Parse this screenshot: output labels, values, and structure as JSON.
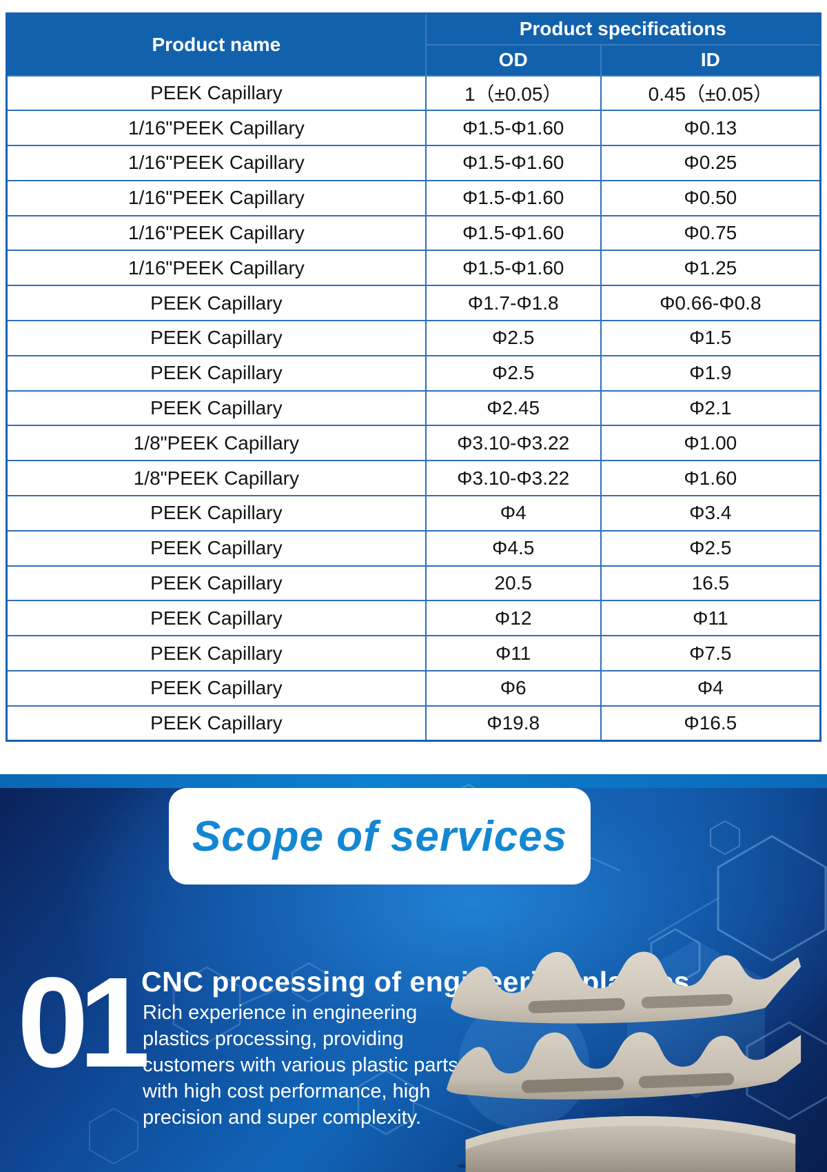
{
  "table": {
    "headers": {
      "product_name": "Product name",
      "specifications": "Product specifications",
      "od": "OD",
      "id": "ID"
    },
    "rows": [
      [
        "PEEK Capillary",
        "1（±0.05）",
        "0.45（±0.05）"
      ],
      [
        "1/16\"PEEK Capillary",
        "Φ1.5-Φ1.60",
        "Φ0.13"
      ],
      [
        "1/16\"PEEK Capillary",
        "Φ1.5-Φ1.60",
        "Φ0.25"
      ],
      [
        "1/16\"PEEK Capillary",
        "Φ1.5-Φ1.60",
        "Φ0.50"
      ],
      [
        "1/16\"PEEK Capillary",
        "Φ1.5-Φ1.60",
        "Φ0.75"
      ],
      [
        "1/16\"PEEK Capillary",
        "Φ1.5-Φ1.60",
        "Φ1.25"
      ],
      [
        "PEEK Capillary",
        "Φ1.7-Φ1.8",
        "Φ0.66-Φ0.8"
      ],
      [
        "PEEK Capillary",
        "Φ2.5",
        "Φ1.5"
      ],
      [
        "PEEK Capillary",
        "Φ2.5",
        "Φ1.9"
      ],
      [
        "PEEK Capillary",
        "Φ2.45",
        "Φ2.1"
      ],
      [
        "1/8\"PEEK Capillary",
        "Φ3.10-Φ3.22",
        "Φ1.00"
      ],
      [
        "1/8\"PEEK Capillary",
        "Φ3.10-Φ3.22",
        "Φ1.60"
      ],
      [
        "PEEK Capillary",
        "Φ4",
        "Φ3.4"
      ],
      [
        "PEEK Capillary",
        "Φ4.5",
        "Φ2.5"
      ],
      [
        "PEEK Capillary",
        "20.5",
        "16.5"
      ],
      [
        "PEEK Capillary",
        "Φ12",
        "Φ11"
      ],
      [
        "PEEK Capillary",
        "Φ11",
        "Φ7.5"
      ],
      [
        "PEEK Capillary",
        "Φ6",
        "Φ4"
      ],
      [
        "PEEK Capillary",
        "Φ19.8",
        "Φ16.5"
      ]
    ]
  },
  "services": {
    "title": "Scope of services",
    "item": {
      "number": "01",
      "heading": "CNC processing of engineering plastics",
      "description": "Rich experience in engineering plastics processing, providing customers with various plastic parts with high cost performance, high precision and super complexity."
    },
    "part_image_alt": "machined beige engineering-plastic arc segment"
  },
  "colors": {
    "table_header_blue": "#1261ac",
    "table_border_blue": "#2e6fba",
    "section_bright_blue": "#1166b8",
    "section_dark_navy": "#0a2158",
    "title_blue": "#1487d4",
    "text_white": "#ffffff",
    "part_beige": "#d5cfc2"
  }
}
